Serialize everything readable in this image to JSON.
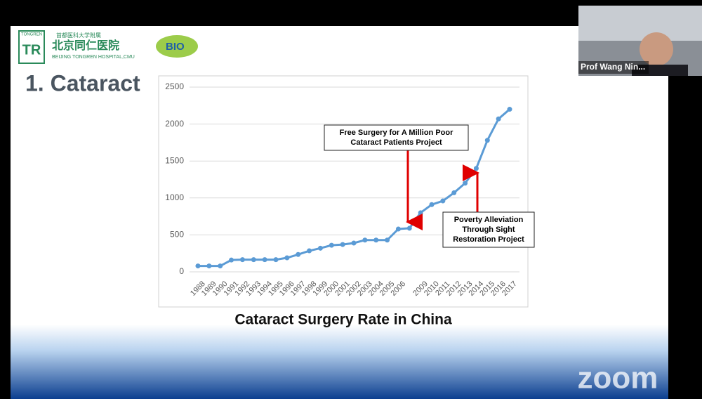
{
  "chart_data": {
    "type": "line",
    "categories": [
      "1988",
      "1989",
      "1990",
      "1991",
      "1992",
      "1993",
      "1994",
      "1995",
      "1996",
      "1997",
      "1998",
      "1999",
      "2000",
      "2001",
      "2002",
      "2003",
      "2004",
      "2005",
      "2006",
      null,
      "2009",
      "2010",
      "2011",
      "2012",
      "2013",
      "2014",
      "2015",
      "2016",
      "2017"
    ],
    "series": [
      {
        "color": "#5b9bd5",
        "values": [
          80,
          80,
          80,
          160,
          165,
          165,
          165,
          165,
          190,
          235,
          285,
          320,
          360,
          370,
          390,
          430,
          430,
          430,
          580,
          590,
          800,
          910,
          960,
          1070,
          1200,
          1400,
          1780,
          2070,
          2200
        ]
      }
    ],
    "ylim": [
      0,
      2500
    ],
    "yticks": [
      0,
      500,
      1000,
      1500,
      2000,
      2500
    ],
    "grid": true,
    "annotations": [
      {
        "lines": [
          "Free Surgery for A Million Poor",
          "Cataract Patients Project"
        ],
        "arrow_color": "#e00000"
      },
      {
        "lines": [
          "Poverty Alleviation",
          "Through Sight",
          "Restoration Project"
        ],
        "arrow_color": "#e00000"
      }
    ]
  },
  "slide": {
    "title": "1. Cataract",
    "caption": "Cataract Surgery Rate in China",
    "logo": {
      "badge": "TONGREN",
      "line1": "首都医科大学附属",
      "line2": "北京同仁医院",
      "line3": "BEIJING TONGREN HOSPITAL,CMU",
      "bio": "BIO"
    }
  },
  "meeting": {
    "participant": "Prof Wang Nin...",
    "watermark": "zoom"
  }
}
